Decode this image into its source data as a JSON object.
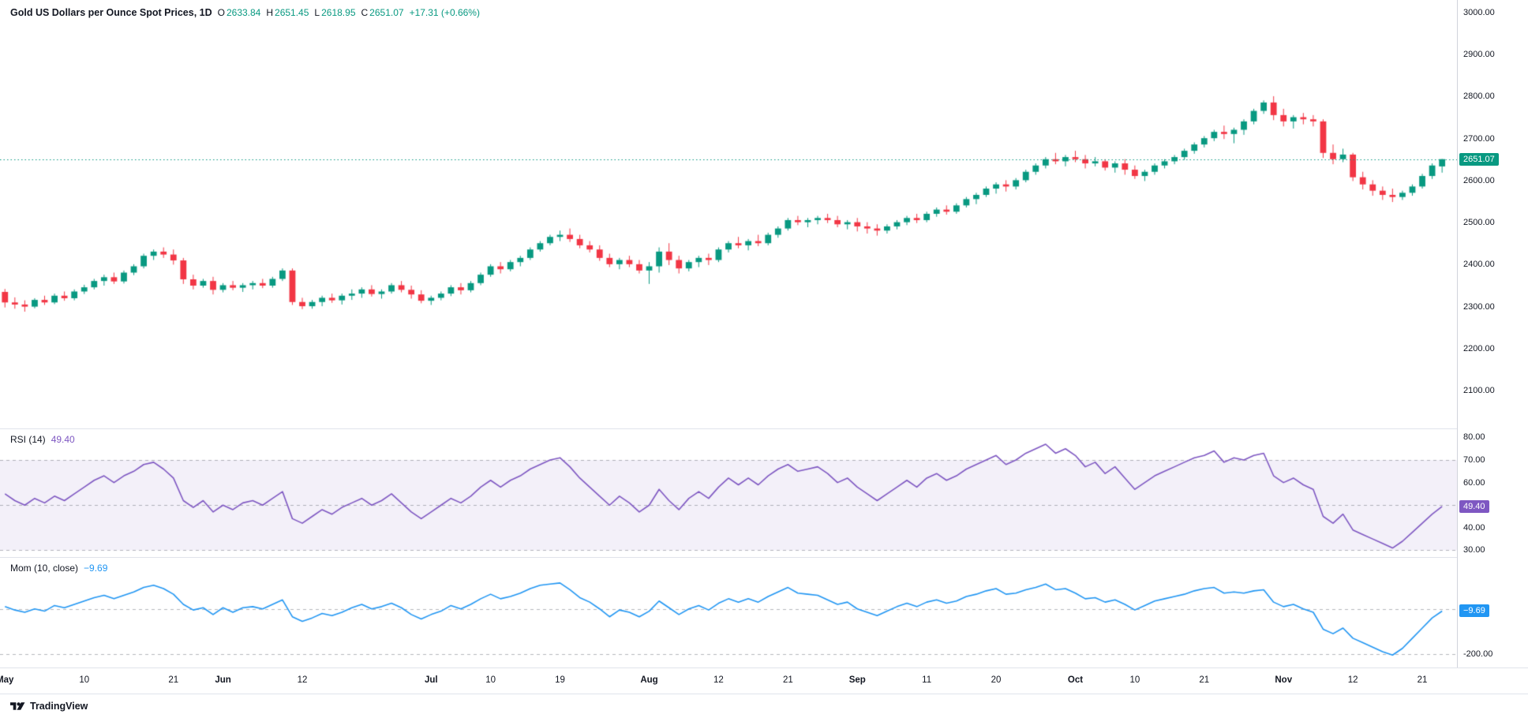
{
  "header": {
    "title": "Gold US Dollars per Ounce Spot Prices, 1D",
    "open_label": "O",
    "open": "2633.84",
    "high_label": "H",
    "high": "2651.45",
    "low_label": "L",
    "low": "2618.95",
    "close_label": "C",
    "close": "2651.07",
    "change": "+17.31 (+0.66%)"
  },
  "rsi_header": {
    "label": "RSI (14)",
    "value": "49.40"
  },
  "mom_header": {
    "label": "Mom (10, close)",
    "value": "−9.69"
  },
  "badges": {
    "price": "2651.07",
    "rsi": "49.40",
    "mom": "−9.69"
  },
  "footer": {
    "brand": "TradingView"
  },
  "colors": {
    "up": "#089981",
    "down": "#f23645",
    "rsi_line": "#7e57c2",
    "rsi_band": "rgba(126,87,194,0.09)",
    "mom_line": "#2196f3",
    "level_dash": "rgba(120,123,134,0.55)",
    "price_badge_bg": "#089981",
    "rsi_badge_bg": "#7e57c2",
    "mom_badge_bg": "#2196f3"
  },
  "chart_data": {
    "type": "candlestick",
    "title": "Gold US Dollars per Ounce Spot Prices",
    "interval": "1D",
    "last_bar": {
      "open": 2633.84,
      "high": 2651.45,
      "low": 2618.95,
      "close": 2651.07,
      "change": 17.31,
      "change_pct": 0.66
    },
    "candles": [
      [
        2335,
        2342,
        2298,
        2310
      ],
      [
        2310,
        2322,
        2295,
        2305
      ],
      [
        2305,
        2315,
        2288,
        2300
      ],
      [
        2300,
        2320,
        2296,
        2316
      ],
      [
        2316,
        2326,
        2304,
        2310
      ],
      [
        2310,
        2331,
        2306,
        2326
      ],
      [
        2326,
        2336,
        2314,
        2320
      ],
      [
        2320,
        2341,
        2315,
        2336
      ],
      [
        2336,
        2352,
        2330,
        2346
      ],
      [
        2346,
        2366,
        2341,
        2361
      ],
      [
        2361,
        2376,
        2350,
        2370
      ],
      [
        2370,
        2381,
        2354,
        2360
      ],
      [
        2360,
        2386,
        2355,
        2381
      ],
      [
        2381,
        2401,
        2375,
        2396
      ],
      [
        2396,
        2426,
        2391,
        2421
      ],
      [
        2421,
        2436,
        2411,
        2431
      ],
      [
        2431,
        2441,
        2416,
        2424
      ],
      [
        2424,
        2436,
        2400,
        2410
      ],
      [
        2410,
        2416,
        2354,
        2365
      ],
      [
        2365,
        2376,
        2341,
        2350
      ],
      [
        2350,
        2366,
        2345,
        2361
      ],
      [
        2361,
        2371,
        2329,
        2340
      ],
      [
        2340,
        2356,
        2334,
        2351
      ],
      [
        2351,
        2361,
        2339,
        2345
      ],
      [
        2345,
        2356,
        2335,
        2351
      ],
      [
        2351,
        2361,
        2341,
        2356
      ],
      [
        2356,
        2366,
        2344,
        2350
      ],
      [
        2350,
        2371,
        2345,
        2366
      ],
      [
        2366,
        2391,
        2361,
        2386
      ],
      [
        2386,
        2391,
        2304,
        2311
      ],
      [
        2311,
        2321,
        2294,
        2301
      ],
      [
        2301,
        2316,
        2295,
        2311
      ],
      [
        2311,
        2326,
        2301,
        2321
      ],
      [
        2321,
        2331,
        2309,
        2315
      ],
      [
        2315,
        2331,
        2305,
        2326
      ],
      [
        2326,
        2341,
        2316,
        2331
      ],
      [
        2331,
        2346,
        2321,
        2341
      ],
      [
        2341,
        2351,
        2324,
        2330
      ],
      [
        2330,
        2341,
        2319,
        2336
      ],
      [
        2336,
        2356,
        2331,
        2351
      ],
      [
        2351,
        2361,
        2334,
        2340
      ],
      [
        2340,
        2350,
        2319,
        2329
      ],
      [
        2329,
        2339,
        2308,
        2314
      ],
      [
        2314,
        2326,
        2304,
        2321
      ],
      [
        2321,
        2336,
        2315,
        2331
      ],
      [
        2331,
        2351,
        2325,
        2346
      ],
      [
        2346,
        2356,
        2329,
        2339
      ],
      [
        2339,
        2361,
        2334,
        2356
      ],
      [
        2356,
        2381,
        2351,
        2376
      ],
      [
        2376,
        2401,
        2371,
        2396
      ],
      [
        2396,
        2406,
        2379,
        2389
      ],
      [
        2389,
        2411,
        2384,
        2406
      ],
      [
        2406,
        2421,
        2396,
        2416
      ],
      [
        2416,
        2441,
        2411,
        2436
      ],
      [
        2436,
        2456,
        2431,
        2451
      ],
      [
        2451,
        2471,
        2446,
        2466
      ],
      [
        2466,
        2481,
        2456,
        2471
      ],
      [
        2471,
        2486,
        2454,
        2461
      ],
      [
        2461,
        2471,
        2439,
        2446
      ],
      [
        2446,
        2456,
        2429,
        2436
      ],
      [
        2436,
        2446,
        2409,
        2416
      ],
      [
        2416,
        2426,
        2394,
        2401
      ],
      [
        2401,
        2416,
        2389,
        2411
      ],
      [
        2411,
        2421,
        2394,
        2401
      ],
      [
        2401,
        2411,
        2379,
        2386
      ],
      [
        2386,
        2406,
        2354,
        2396
      ],
      [
        2396,
        2441,
        2381,
        2431
      ],
      [
        2431,
        2451,
        2399,
        2411
      ],
      [
        2411,
        2421,
        2379,
        2391
      ],
      [
        2391,
        2411,
        2384,
        2406
      ],
      [
        2406,
        2421,
        2394,
        2416
      ],
      [
        2416,
        2426,
        2399,
        2411
      ],
      [
        2411,
        2441,
        2406,
        2436
      ],
      [
        2436,
        2456,
        2429,
        2451
      ],
      [
        2451,
        2466,
        2439,
        2446
      ],
      [
        2446,
        2461,
        2434,
        2456
      ],
      [
        2456,
        2471,
        2444,
        2451
      ],
      [
        2451,
        2476,
        2446,
        2471
      ],
      [
        2471,
        2491,
        2464,
        2486
      ],
      [
        2486,
        2511,
        2481,
        2506
      ],
      [
        2506,
        2516,
        2494,
        2501
      ],
      [
        2501,
        2511,
        2489,
        2506
      ],
      [
        2506,
        2516,
        2496,
        2511
      ],
      [
        2511,
        2521,
        2499,
        2506
      ],
      [
        2506,
        2516,
        2489,
        2496
      ],
      [
        2496,
        2506,
        2484,
        2501
      ],
      [
        2501,
        2511,
        2479,
        2491
      ],
      [
        2491,
        2501,
        2474,
        2486
      ],
      [
        2486,
        2496,
        2469,
        2481
      ],
      [
        2481,
        2496,
        2474,
        2491
      ],
      [
        2491,
        2506,
        2484,
        2501
      ],
      [
        2501,
        2516,
        2494,
        2511
      ],
      [
        2511,
        2521,
        2499,
        2506
      ],
      [
        2506,
        2526,
        2501,
        2521
      ],
      [
        2521,
        2536,
        2514,
        2531
      ],
      [
        2531,
        2541,
        2519,
        2526
      ],
      [
        2526,
        2546,
        2521,
        2541
      ],
      [
        2541,
        2561,
        2536,
        2556
      ],
      [
        2556,
        2571,
        2544,
        2566
      ],
      [
        2566,
        2586,
        2561,
        2581
      ],
      [
        2581,
        2596,
        2569,
        2591
      ],
      [
        2591,
        2601,
        2574,
        2586
      ],
      [
        2586,
        2606,
        2579,
        2601
      ],
      [
        2601,
        2626,
        2596,
        2621
      ],
      [
        2621,
        2641,
        2614,
        2636
      ],
      [
        2636,
        2656,
        2629,
        2651
      ],
      [
        2651,
        2666,
        2639,
        2646
      ],
      [
        2646,
        2661,
        2634,
        2656
      ],
      [
        2656,
        2671,
        2644,
        2651
      ],
      [
        2651,
        2661,
        2629,
        2641
      ],
      [
        2641,
        2656,
        2634,
        2646
      ],
      [
        2646,
        2651,
        2624,
        2631
      ],
      [
        2631,
        2646,
        2619,
        2641
      ],
      [
        2641,
        2651,
        2614,
        2626
      ],
      [
        2626,
        2636,
        2604,
        2611
      ],
      [
        2611,
        2626,
        2599,
        2621
      ],
      [
        2621,
        2641,
        2614,
        2636
      ],
      [
        2636,
        2651,
        2629,
        2646
      ],
      [
        2646,
        2661,
        2639,
        2656
      ],
      [
        2656,
        2676,
        2649,
        2671
      ],
      [
        2671,
        2691,
        2664,
        2686
      ],
      [
        2686,
        2706,
        2679,
        2701
      ],
      [
        2701,
        2721,
        2694,
        2716
      ],
      [
        2716,
        2731,
        2699,
        2711
      ],
      [
        2711,
        2726,
        2689,
        2721
      ],
      [
        2721,
        2746,
        2709,
        2741
      ],
      [
        2741,
        2771,
        2734,
        2766
      ],
      [
        2766,
        2791,
        2759,
        2786
      ],
      [
        2786,
        2801,
        2744,
        2756
      ],
      [
        2756,
        2771,
        2729,
        2741
      ],
      [
        2741,
        2756,
        2724,
        2751
      ],
      [
        2751,
        2761,
        2734,
        2746
      ],
      [
        2746,
        2756,
        2729,
        2741
      ],
      [
        2741,
        2746,
        2654,
        2666
      ],
      [
        2666,
        2686,
        2639,
        2651
      ],
      [
        2651,
        2676,
        2644,
        2662
      ],
      [
        2662,
        2666,
        2599,
        2608
      ],
      [
        2608,
        2621,
        2579,
        2591
      ],
      [
        2591,
        2601,
        2564,
        2576
      ],
      [
        2576,
        2586,
        2554,
        2566
      ],
      [
        2566,
        2581,
        2549,
        2561
      ],
      [
        2561,
        2576,
        2554,
        2571
      ],
      [
        2571,
        2591,
        2564,
        2586
      ],
      [
        2586,
        2616,
        2581,
        2611
      ],
      [
        2611,
        2641,
        2604,
        2636
      ],
      [
        2633.84,
        2651.45,
        2618.95,
        2651.07
      ]
    ],
    "time_labels": [
      {
        "label": "May",
        "index": 0,
        "major": true
      },
      {
        "label": "10",
        "index": 8,
        "major": false
      },
      {
        "label": "21",
        "index": 17,
        "major": false
      },
      {
        "label": "Jun",
        "index": 22,
        "major": true
      },
      {
        "label": "12",
        "index": 30,
        "major": false
      },
      {
        "label": "Jul",
        "index": 43,
        "major": true
      },
      {
        "label": "10",
        "index": 49,
        "major": false
      },
      {
        "label": "19",
        "index": 56,
        "major": false
      },
      {
        "label": "Aug",
        "index": 65,
        "major": true
      },
      {
        "label": "12",
        "index": 72,
        "major": false
      },
      {
        "label": "21",
        "index": 79,
        "major": false
      },
      {
        "label": "Sep",
        "index": 86,
        "major": true
      },
      {
        "label": "11",
        "index": 93,
        "major": false
      },
      {
        "label": "20",
        "index": 100,
        "major": false
      },
      {
        "label": "Oct",
        "index": 108,
        "major": true
      },
      {
        "label": "10",
        "index": 114,
        "major": false
      },
      {
        "label": "21",
        "index": 121,
        "major": false
      },
      {
        "label": "Nov",
        "index": 129,
        "major": true
      },
      {
        "label": "12",
        "index": 136,
        "major": false
      },
      {
        "label": "21",
        "index": 143,
        "major": false
      }
    ],
    "panes": {
      "price": {
        "range": [
          2010,
          3030
        ],
        "axis_ticks": [
          3000,
          2900,
          2800,
          2700,
          2600,
          2500,
          2400,
          2300,
          2200,
          2100
        ],
        "last_price": 2651.07
      },
      "rsi": {
        "type": "line",
        "name": "RSI (14)",
        "range": [
          27,
          84
        ],
        "axis_ticks": [
          80,
          70,
          60,
          40,
          30
        ],
        "band": [
          30,
          70
        ],
        "midline": 50,
        "last": 49.4,
        "values": [
          55,
          52,
          50,
          53,
          51,
          54,
          52,
          55,
          58,
          61,
          63,
          60,
          63,
          65,
          68,
          69,
          66,
          62,
          52,
          49,
          52,
          47,
          50,
          48,
          51,
          52,
          50,
          53,
          56,
          44,
          42,
          45,
          48,
          46,
          49,
          51,
          53,
          50,
          52,
          55,
          51,
          47,
          44,
          47,
          50,
          53,
          51,
          54,
          58,
          61,
          58,
          61,
          63,
          66,
          68,
          70,
          71,
          67,
          62,
          58,
          54,
          50,
          54,
          51,
          47,
          50,
          57,
          52,
          48,
          53,
          56,
          53,
          58,
          62,
          59,
          62,
          59,
          63,
          66,
          68,
          65,
          66,
          67,
          64,
          60,
          62,
          58,
          55,
          52,
          55,
          58,
          61,
          58,
          62,
          64,
          61,
          63,
          66,
          68,
          70,
          72,
          68,
          70,
          73,
          75,
          77,
          73,
          75,
          72,
          67,
          69,
          64,
          67,
          62,
          57,
          60,
          63,
          65,
          67,
          69,
          71,
          72,
          74,
          69,
          71,
          70,
          72,
          73,
          63,
          60,
          62,
          59,
          57,
          45,
          42,
          46,
          39,
          37,
          35,
          33,
          31,
          34,
          38,
          42,
          46,
          49.4
        ]
      },
      "mom": {
        "type": "line",
        "name": "Mom (10, close)",
        "range": [
          -260,
          230
        ],
        "axis_ticks": [
          -200
        ],
        "zero_line": 0,
        "last": -9.69,
        "values": [
          10,
          -5,
          -15,
          0,
          -10,
          15,
          5,
          20,
          35,
          50,
          60,
          45,
          60,
          75,
          95,
          105,
          90,
          65,
          20,
          -5,
          5,
          -25,
          5,
          -15,
          5,
          10,
          0,
          20,
          40,
          -35,
          -55,
          -40,
          -20,
          -30,
          -15,
          5,
          20,
          0,
          10,
          25,
          5,
          -25,
          -45,
          -25,
          -10,
          15,
          0,
          20,
          45,
          65,
          45,
          55,
          70,
          90,
          105,
          110,
          115,
          85,
          50,
          30,
          0,
          -35,
          -5,
          -15,
          -35,
          -10,
          35,
          5,
          -25,
          0,
          15,
          -5,
          25,
          45,
          30,
          45,
          30,
          55,
          75,
          95,
          70,
          65,
          60,
          40,
          20,
          30,
          0,
          -15,
          -30,
          -10,
          10,
          25,
          10,
          30,
          40,
          25,
          35,
          55,
          65,
          80,
          90,
          65,
          70,
          85,
          95,
          110,
          85,
          90,
          70,
          45,
          50,
          30,
          40,
          20,
          -5,
          15,
          35,
          45,
          55,
          65,
          80,
          90,
          95,
          70,
          75,
          70,
          80,
          85,
          30,
          10,
          20,
          0,
          -15,
          -90,
          -110,
          -85,
          -130,
          -150,
          -170,
          -190,
          -205,
          -175,
          -130,
          -85,
          -40,
          -9.69
        ]
      }
    }
  }
}
